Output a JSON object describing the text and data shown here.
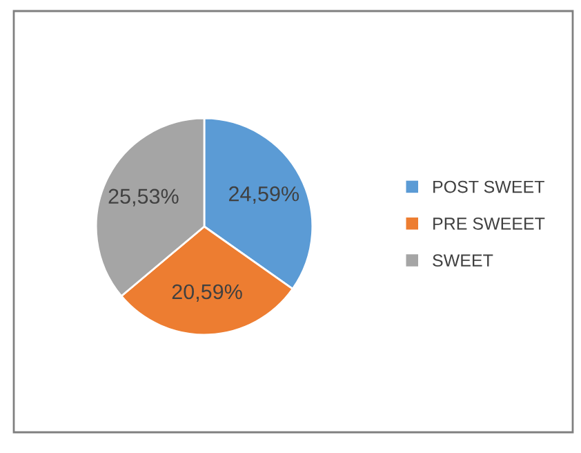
{
  "chart_data": {
    "type": "pie",
    "categories": [
      "POST SWEET",
      "PRE SWEEET",
      "SWEET"
    ],
    "values": [
      24.59,
      20.59,
      25.53
    ],
    "colors": [
      "#5b9bd5",
      "#ed7d31",
      "#a5a5a5"
    ],
    "value_labels": [
      "24,59%",
      "20,59%",
      "25,53%"
    ],
    "legend": "right"
  }
}
